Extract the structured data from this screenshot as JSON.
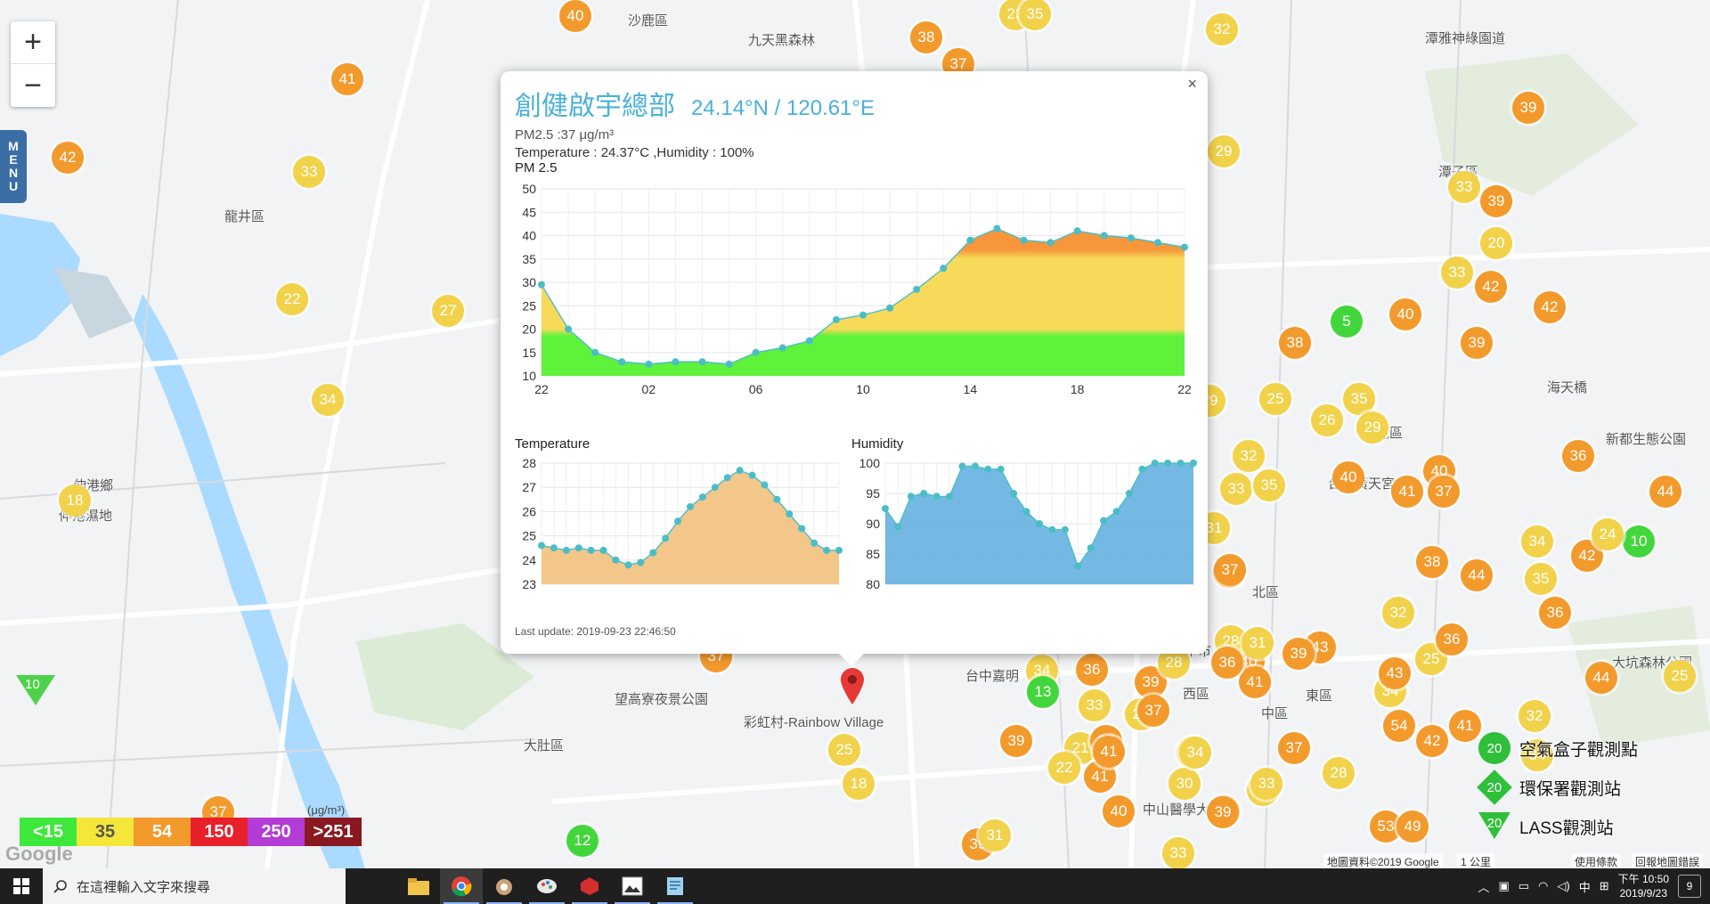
{
  "map": {
    "place_labels": [
      {
        "text": "沙鹿區"
      },
      {
        "text": "九天黑森林"
      },
      {
        "text": "龍井區"
      },
      {
        "text": "伸港鄉"
      },
      {
        "text": "伸港濕地"
      },
      {
        "text": "大肚區"
      },
      {
        "text": "望高寮夜景公園"
      },
      {
        "text": "彩虹村-Rainbow Village"
      },
      {
        "text": "潭子區"
      },
      {
        "text": "潭雅神綠園道"
      },
      {
        "text": "北屯區"
      },
      {
        "text": "北區"
      },
      {
        "text": "西區"
      },
      {
        "text": "中區"
      },
      {
        "text": "東區"
      },
      {
        "text": "台中市"
      },
      {
        "text": "中山醫學大學"
      },
      {
        "text": "海天橋"
      },
      {
        "text": "新都生態公園"
      },
      {
        "text": "大坑森林公園"
      },
      {
        "text": "台中廣天宮"
      },
      {
        "text": "台中嘉明"
      },
      {
        "text": "市"
      }
    ],
    "markers": [
      {
        "v": "40",
        "c": "o"
      },
      {
        "v": "41",
        "c": "o"
      },
      {
        "v": "42",
        "c": "o"
      },
      {
        "v": "33",
        "c": "y"
      },
      {
        "v": "22",
        "c": "y"
      },
      {
        "v": "27",
        "c": "y"
      },
      {
        "v": "34",
        "c": "y"
      },
      {
        "v": "18",
        "c": "y"
      },
      {
        "v": "37",
        "c": "o"
      },
      {
        "v": "12",
        "c": "g"
      },
      {
        "v": "38",
        "c": "o"
      },
      {
        "v": "37",
        "c": "o"
      },
      {
        "v": "23",
        "c": "y"
      },
      {
        "v": "35",
        "c": "y"
      },
      {
        "v": "32",
        "c": "y"
      },
      {
        "v": "29",
        "c": "y"
      },
      {
        "v": "39",
        "c": "o"
      },
      {
        "v": "33",
        "c": "y"
      },
      {
        "v": "39",
        "c": "o"
      },
      {
        "v": "20",
        "c": "y"
      },
      {
        "v": "33",
        "c": "y"
      },
      {
        "v": "42",
        "c": "o"
      },
      {
        "v": "42",
        "c": "o"
      },
      {
        "v": "5",
        "c": "g"
      },
      {
        "v": "40",
        "c": "o"
      },
      {
        "v": "38",
        "c": "o"
      },
      {
        "v": "39",
        "c": "o"
      },
      {
        "v": "25",
        "c": "y"
      },
      {
        "v": "35",
        "c": "y"
      },
      {
        "v": "26",
        "c": "y"
      },
      {
        "v": "29",
        "c": "y"
      },
      {
        "v": "40",
        "c": "o"
      },
      {
        "v": "41",
        "c": "o"
      },
      {
        "v": "40",
        "c": "o"
      },
      {
        "v": "37",
        "c": "o"
      },
      {
        "v": "36",
        "c": "o"
      },
      {
        "v": "44",
        "c": "o"
      },
      {
        "v": "10",
        "c": "g"
      },
      {
        "v": "42",
        "c": "o"
      },
      {
        "v": "24",
        "c": "y"
      },
      {
        "v": "34",
        "c": "y"
      },
      {
        "v": "35",
        "c": "y"
      },
      {
        "v": "36",
        "c": "o"
      },
      {
        "v": "38",
        "c": "o"
      },
      {
        "v": "44",
        "c": "o"
      },
      {
        "v": "25",
        "c": "y"
      },
      {
        "v": "36",
        "c": "o"
      },
      {
        "v": "43",
        "c": "o"
      },
      {
        "v": "32",
        "c": "y"
      },
      {
        "v": "44",
        "c": "o"
      },
      {
        "v": "25",
        "c": "y"
      },
      {
        "v": "34",
        "c": "y"
      },
      {
        "v": "43",
        "c": "o"
      },
      {
        "v": "39",
        "c": "o"
      },
      {
        "v": "40",
        "c": "o"
      },
      {
        "v": "41",
        "c": "o"
      },
      {
        "v": "28",
        "c": "y"
      },
      {
        "v": "37",
        "c": "o"
      },
      {
        "v": "32",
        "c": "y"
      },
      {
        "v": "33",
        "c": "y"
      },
      {
        "v": "35",
        "c": "y"
      },
      {
        "v": "29",
        "c": "y"
      },
      {
        "v": "31",
        "c": "y"
      },
      {
        "v": "37",
        "c": "o"
      },
      {
        "v": "54",
        "c": "o"
      },
      {
        "v": "41",
        "c": "o"
      },
      {
        "v": "42",
        "c": "o"
      },
      {
        "v": "32",
        "c": "y"
      },
      {
        "v": "34",
        "c": "y"
      },
      {
        "v": "37",
        "c": "o"
      },
      {
        "v": "28",
        "c": "y"
      },
      {
        "v": "18",
        "c": "y"
      },
      {
        "v": "39",
        "c": "o"
      },
      {
        "v": "53",
        "c": "o"
      },
      {
        "v": "49",
        "c": "o"
      },
      {
        "v": "33",
        "c": "y"
      },
      {
        "v": "34",
        "c": "y"
      },
      {
        "v": "36",
        "c": "o"
      },
      {
        "v": "13",
        "c": "g"
      },
      {
        "v": "33",
        "c": "y"
      },
      {
        "v": "39",
        "c": "o"
      },
      {
        "v": "21",
        "c": "y"
      },
      {
        "v": "37",
        "c": "o"
      },
      {
        "v": "22",
        "c": "y"
      },
      {
        "v": "41",
        "c": "o"
      },
      {
        "v": "22",
        "c": "y"
      },
      {
        "v": "35",
        "c": "y"
      },
      {
        "v": "30",
        "c": "y"
      },
      {
        "v": "39",
        "c": "o"
      },
      {
        "v": "39",
        "c": "o"
      },
      {
        "v": "31",
        "c": "y"
      },
      {
        "v": "30",
        "c": "y"
      },
      {
        "v": "37",
        "c": "o"
      },
      {
        "v": "25",
        "c": "y"
      },
      {
        "v": "18",
        "c": "y"
      },
      {
        "v": "40",
        "c": "o"
      },
      {
        "v": "39",
        "c": "o"
      },
      {
        "v": "37",
        "c": "o"
      },
      {
        "v": "41",
        "c": "o"
      },
      {
        "v": "36",
        "c": "o"
      },
      {
        "v": "28",
        "c": "y"
      },
      {
        "v": "31",
        "c": "y"
      },
      {
        "v": "33",
        "c": "y"
      },
      {
        "v": "34",
        "c": "y"
      }
    ],
    "triangle_markers": [
      {
        "v": "10"
      }
    ],
    "zoom_in": "+",
    "zoom_out": "−",
    "menu_label": [
      "M",
      "E",
      "N",
      "U"
    ],
    "legend": [
      {
        "label": "<15",
        "color": "#3ee83a"
      },
      {
        "label": "35",
        "color": "#f5e63a"
      },
      {
        "label": "54",
        "color": "#f39a2c"
      },
      {
        "label": "150",
        "color": "#e8202a"
      },
      {
        "label": "250",
        "color": "#b43cd6"
      },
      {
        "label": ">251",
        "color": "#8a1820"
      }
    ],
    "legend_unit": "(μg/m³)",
    "google_logo": "Google",
    "attribution": "地圖資料©2019 Google",
    "scale": "1 公里",
    "terms": "使用條款",
    "report": "回報地圖錯誤",
    "station_legend": [
      {
        "value": "20",
        "label": "空氣盒子觀測點",
        "shape": "circle"
      },
      {
        "value": "20",
        "label": "環保署觀測站",
        "shape": "diamond"
      },
      {
        "value": "20",
        "label": "LASS觀測站",
        "shape": "triangle"
      }
    ]
  },
  "popup": {
    "title": "創健啟宇總部",
    "coords": "24.14°N / 120.61°E",
    "pm_line": "PM2.5 :37 μg/m³",
    "env_line": "Temperature : 24.37°C ,Humidity : 100%",
    "pm_chart_title": "PM 2.5",
    "temp_chart_title": "Temperature",
    "hum_chart_title": "Humidity",
    "last_update": "Last update: 2019-09-23 22:46:50",
    "close": "×"
  },
  "chart_data": [
    {
      "type": "area",
      "title": "PM 2.5",
      "x_ticks": [
        "22",
        "02",
        "06",
        "10",
        "14",
        "18",
        "22"
      ],
      "ylim": [
        10,
        50
      ],
      "y_ticks": [
        10,
        15,
        20,
        25,
        30,
        35,
        40,
        45,
        50
      ],
      "values": [
        29.5,
        20,
        15,
        13,
        12.5,
        13,
        13,
        12.5,
        15,
        16,
        17.5,
        22,
        23,
        24.5,
        28.5,
        33,
        39,
        41.5,
        39,
        38.5,
        41,
        40,
        39.5,
        38.5,
        37.5
      ],
      "band_colors": [
        "#5ef23a",
        "#f7da5a",
        "#f7963a"
      ],
      "point_color": "#4bbdc7"
    },
    {
      "type": "area",
      "title": "Temperature",
      "ylim": [
        23,
        28
      ],
      "y_ticks": [
        23,
        24,
        25,
        26,
        27,
        28
      ],
      "values": [
        24.6,
        24.5,
        24.4,
        24.5,
        24.4,
        24.4,
        24.0,
        23.8,
        23.9,
        24.3,
        24.9,
        25.6,
        26.2,
        26.6,
        27.0,
        27.4,
        27.7,
        27.5,
        27.1,
        26.5,
        25.9,
        25.3,
        24.7,
        24.4,
        24.4
      ],
      "fill": "#f2c384",
      "point_color": "#4bbdc7"
    },
    {
      "type": "area",
      "title": "Humidity",
      "ylim": [
        80,
        100
      ],
      "y_ticks": [
        80,
        85,
        90,
        95,
        100
      ],
      "values": [
        92.5,
        89.5,
        94.5,
        95,
        94.5,
        94.5,
        99.5,
        99.5,
        99,
        99,
        95,
        92,
        90,
        89,
        89,
        83,
        86,
        90.5,
        92,
        95,
        99,
        100,
        100,
        100,
        100
      ],
      "fill": "#6cb5e2",
      "point_color": "#4bbdc7"
    }
  ],
  "taskbar": {
    "search_placeholder": "在這裡輸入文字來搜尋",
    "ime": "中",
    "time": "下午 10:50",
    "date": "2019/9/23",
    "notifications": "9"
  }
}
